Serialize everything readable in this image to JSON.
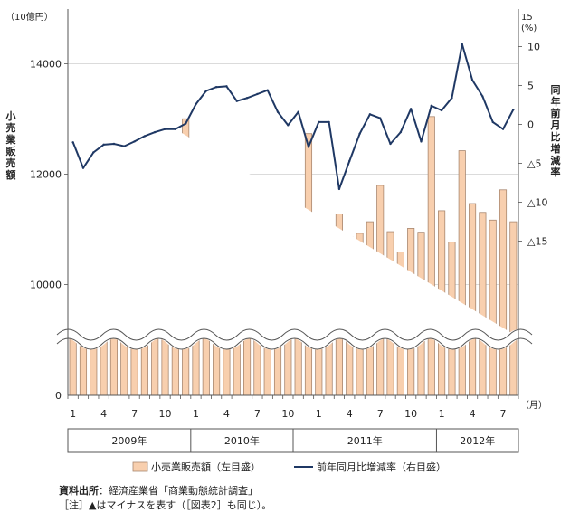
{
  "chart_data": {
    "type": "bar+line",
    "left_unit": "（10億円）",
    "right_unit": "(%)",
    "month_unit": "（月）",
    "left_axis_title": "小売業販売額",
    "right_axis_title": "同年前月比増減率",
    "left_ticks": [
      "0",
      "10000",
      "12000",
      "14000"
    ],
    "right_ticks": [
      "15",
      "10",
      "5",
      "0",
      "△5",
      "△10",
      "△15"
    ],
    "x_tick_labels": [
      "1",
      "4",
      "7",
      "10",
      "1",
      "4",
      "7",
      "10",
      "1",
      "4",
      "7",
      "10",
      "1",
      "4",
      "7"
    ],
    "x_tick_positions": [
      1,
      4,
      7,
      10,
      13,
      16,
      19,
      22,
      25,
      28,
      31,
      34,
      37,
      40,
      43
    ],
    "years": [
      {
        "label": "2009年",
        "from": 1,
        "to": 12
      },
      {
        "label": "2010年",
        "from": 13,
        "to": 22
      },
      {
        "label": "2011年",
        "from": 23,
        "to": 36
      },
      {
        "label": "2012年",
        "from": 37,
        "to": 44
      }
    ],
    "series": [
      {
        "name": "小売業販売額（左目盛）",
        "type": "bar",
        "color": "#f8cfae",
        "values": [
          10880,
          9990,
          11750,
          10870,
          10750,
          10670,
          11290,
          10780,
          10560,
          10830,
          11030,
          13010,
          11130,
          10400,
          12300,
          11400,
          11060,
          11020,
          11730,
          11240,
          10710,
          10810,
          11200,
          12740,
          11130,
          10410,
          11280,
          10860,
          10930,
          11140,
          11800,
          10960,
          10590,
          11020,
          10950,
          13050,
          11340,
          10770,
          12430,
          11470,
          11310,
          11170,
          11720,
          11140
        ]
      },
      {
        "name": "前年同月比増減率（右目盛）",
        "type": "line",
        "color": "#1f3864",
        "values": [
          -2.3,
          -5.6,
          -3.6,
          -2.6,
          -2.5,
          -2.8,
          -2.2,
          -1.5,
          -1.0,
          -0.6,
          -0.6,
          0.1,
          2.6,
          4.3,
          4.8,
          4.9,
          3.0,
          3.4,
          3.9,
          4.4,
          1.6,
          -0.1,
          1.6,
          -2.9,
          0.3,
          0.3,
          -8.3,
          -4.7,
          -1.2,
          1.3,
          0.8,
          -2.5,
          -1.0,
          2.0,
          -2.2,
          2.4,
          1.8,
          3.4,
          10.3,
          5.7,
          3.6,
          0.3,
          -0.6,
          1.9
        ]
      }
    ]
  },
  "legend": {
    "bar_label": "小売業販売額（左目盛）",
    "line_label": "前年同月比増減率（右目盛）"
  },
  "notes": {
    "source_label": "資料出所",
    "source_text": "：経済産業省「商業動態統計調査」",
    "note_text": "［注］▲はマイナスを表す（［図表2］も同じ）。"
  }
}
